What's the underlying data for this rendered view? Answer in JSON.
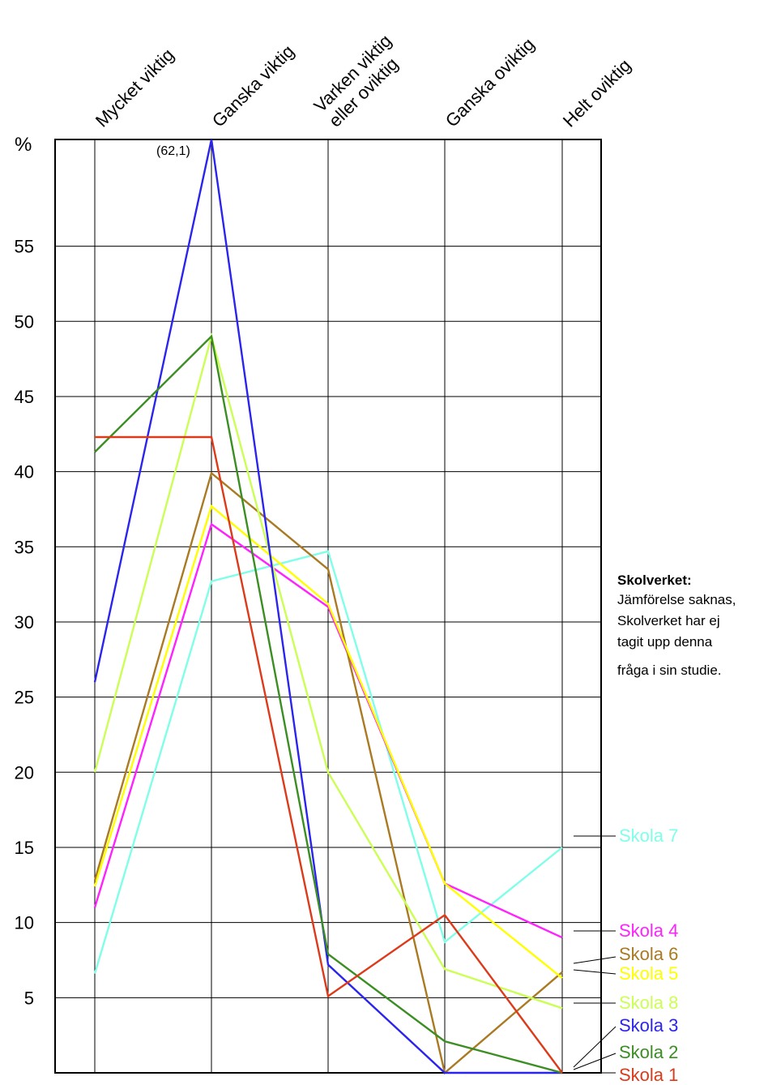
{
  "chart_data": {
    "type": "line",
    "categories": [
      "Mycket viktig",
      "Ganska viktig",
      "Varken viktig eller oviktig",
      "Ganska oviktig",
      "Helt oviktig"
    ],
    "category_labels": [
      [
        "Mycket viktig"
      ],
      [
        "Ganska viktig"
      ],
      [
        "Varken viktig",
        "eller oviktig"
      ],
      [
        "Ganska oviktig"
      ],
      [
        "Helt oviktig"
      ]
    ],
    "ylabel": "%",
    "ylim": [
      0,
      62.1
    ],
    "yticks": [
      5,
      10,
      15,
      20,
      25,
      30,
      35,
      40,
      45,
      50,
      55
    ],
    "grid": true,
    "legend_position": "right",
    "annotation": "(62,1)",
    "series": [
      {
        "name": "Skola 7",
        "color": "#80ffe8",
        "values": [
          6.6,
          32.7,
          34.7,
          8.7,
          15.0
        ]
      },
      {
        "name": "Skola 4",
        "color": "#ff22ff",
        "values": [
          11.0,
          36.5,
          31.0,
          12.6,
          9.0
        ]
      },
      {
        "name": "Skola 6",
        "color": "#aa7a22",
        "values": [
          12.8,
          39.9,
          33.5,
          0.0,
          6.7
        ]
      },
      {
        "name": "Skola 5",
        "color": "#ffff00",
        "values": [
          12.4,
          37.7,
          31.2,
          12.6,
          6.3
        ]
      },
      {
        "name": "Skola 8",
        "color": "#ccff55",
        "values": [
          20.0,
          49.0,
          20.0,
          6.9,
          4.3
        ]
      },
      {
        "name": "Skola 3",
        "color": "#2a24ee",
        "values": [
          26.0,
          62.1,
          7.2,
          0.0,
          0.0
        ]
      },
      {
        "name": "Skola 2",
        "color": "#3a8e22",
        "values": [
          41.3,
          49.0,
          7.9,
          2.1,
          0.0
        ]
      },
      {
        "name": "Skola 1",
        "color": "#dd3a1a",
        "values": [
          42.3,
          42.3,
          5.1,
          10.5,
          0.0
        ]
      }
    ]
  },
  "note": {
    "title": "Skolverket:",
    "lines": [
      "Jämförelse saknas,",
      "Skolverket har ej",
      "tagit upp denna",
      "fråga i sin studie."
    ]
  }
}
